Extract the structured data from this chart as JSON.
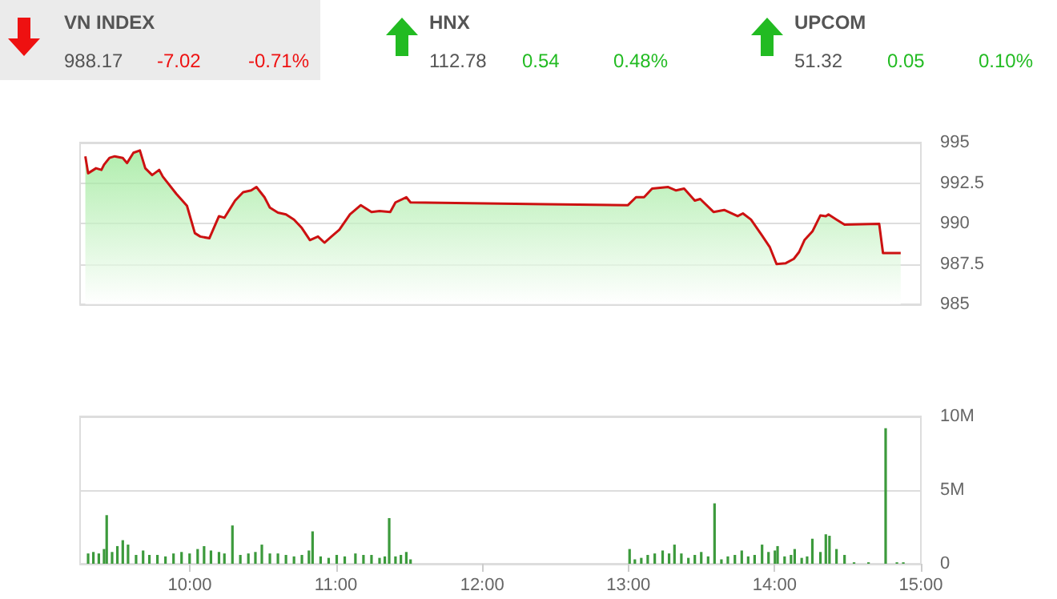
{
  "chart_data": [
    {
      "type": "other",
      "annotations": [
        "VN INDEX",
        "988.17",
        "-7.02",
        "-0.71%",
        "HNX",
        "112.78",
        "0.54",
        "0.48%",
        "UPCOM",
        "51.32",
        "0.05",
        "0.10%"
      ]
    },
    {
      "type": "area",
      "x": [
        9.286,
        9.305,
        9.359,
        9.396,
        9.414,
        9.451,
        9.487,
        9.542,
        9.571,
        9.615,
        9.659,
        9.696,
        9.743,
        9.791,
        9.816,
        9.908,
        9.981,
        10.035,
        10.072,
        10.134,
        10.2,
        10.237,
        10.31,
        10.365,
        10.42,
        10.456,
        10.511,
        10.548,
        10.603,
        10.658,
        10.713,
        10.767,
        10.822,
        10.877,
        10.921,
        10.969,
        11.023,
        11.096,
        11.17,
        11.243,
        11.298,
        11.371,
        11.407,
        11.481,
        11.51,
        12.431,
        12.997,
        13.052,
        13.107,
        13.162,
        13.272,
        13.326,
        13.381,
        13.454,
        13.491,
        13.582,
        13.655,
        13.747,
        13.783,
        13.838,
        13.911,
        13.966,
        14.013,
        14.076,
        14.131,
        14.167,
        14.204,
        14.258,
        14.313,
        14.35,
        14.368,
        14.423,
        14.478,
        14.715,
        14.741,
        14.862
      ],
      "series": [
        {
          "color": "#cc1111",
          "values": [
            994.15,
            993.1,
            993.41,
            993.31,
            993.63,
            994.05,
            994.15,
            994.05,
            993.73,
            994.37,
            994.51,
            993.41,
            992.99,
            993.31,
            992.89,
            991.83,
            991.09,
            989.4,
            989.19,
            989.08,
            990.45,
            990.35,
            991.41,
            991.93,
            992.04,
            992.25,
            991.62,
            990.98,
            990.67,
            990.56,
            990.24,
            989.71,
            988.97,
            989.19,
            988.81,
            989.19,
            989.61,
            990.56,
            991.13,
            990.71,
            990.77,
            990.71,
            991.3,
            991.62,
            991.3,
            991.19,
            991.13,
            991.62,
            991.62,
            992.15,
            992.25,
            992.04,
            992.15,
            991.41,
            991.51,
            990.71,
            990.83,
            990.45,
            990.62,
            990.24,
            989.29,
            988.55,
            987.49,
            987.54,
            987.81,
            988.23,
            988.97,
            989.5,
            990.5,
            990.45,
            990.56,
            990.24,
            989.93,
            989.97,
            988.17,
            988.17
          ]
        }
      ],
      "xlim": [
        9.25,
        15
      ],
      "ylim": [
        985,
        995
      ],
      "yticks": [
        985,
        987.5,
        990,
        992.5,
        995
      ],
      "grid": "y",
      "tick_labels": "y"
    },
    {
      "type": "bar",
      "x": [
        9.305,
        9.341,
        9.378,
        9.414,
        9.432,
        9.469,
        9.505,
        9.542,
        9.578,
        9.633,
        9.681,
        9.724,
        9.779,
        9.834,
        9.889,
        9.944,
        9.999,
        10.054,
        10.098,
        10.145,
        10.2,
        10.237,
        10.292,
        10.346,
        10.401,
        10.449,
        10.493,
        10.548,
        10.603,
        10.658,
        10.713,
        10.767,
        10.815,
        10.84,
        10.895,
        10.95,
        11.005,
        11.06,
        11.133,
        11.188,
        11.243,
        11.298,
        11.334,
        11.364,
        11.407,
        11.444,
        11.481,
        11.51,
        13.008,
        13.044,
        13.088,
        13.132,
        13.18,
        13.234,
        13.278,
        13.315,
        13.362,
        13.41,
        13.454,
        13.498,
        13.545,
        13.589,
        13.636,
        13.68,
        13.728,
        13.775,
        13.819,
        13.863,
        13.914,
        13.958,
        14.002,
        14.02,
        14.068,
        14.112,
        14.137,
        14.185,
        14.222,
        14.258,
        14.313,
        14.35,
        14.375,
        14.423,
        14.478,
        14.543,
        14.642,
        14.759,
        14.836,
        14.88
      ],
      "series": [
        {
          "color": "#3c9a3c",
          "values": [
            0.7,
            0.8,
            0.7,
            1.0,
            3.3,
            0.8,
            1.2,
            1.6,
            1.3,
            0.6,
            0.9,
            0.6,
            0.6,
            0.5,
            0.7,
            0.8,
            0.7,
            1.0,
            1.2,
            0.9,
            0.8,
            0.7,
            2.6,
            0.6,
            0.7,
            0.8,
            1.3,
            0.7,
            0.7,
            0.6,
            0.5,
            0.6,
            0.9,
            2.2,
            0.5,
            0.4,
            0.6,
            0.5,
            0.7,
            0.6,
            0.6,
            0.4,
            0.5,
            3.1,
            0.5,
            0.6,
            0.8,
            0.3,
            1.0,
            0.3,
            0.4,
            0.6,
            0.7,
            0.9,
            0.7,
            1.3,
            0.7,
            0.4,
            0.6,
            0.8,
            0.5,
            4.1,
            0.3,
            0.5,
            0.6,
            0.9,
            0.5,
            0.6,
            1.3,
            0.8,
            0.9,
            1.2,
            0.5,
            0.6,
            1.0,
            0.4,
            0.5,
            1.7,
            0.8,
            2.0,
            1.9,
            1.0,
            0.6,
            0.1,
            0.1,
            9.2,
            0.1,
            0.1
          ]
        }
      ],
      "xlim": [
        9.25,
        15
      ],
      "xticks": [
        {
          "value": 10,
          "label": "10:00"
        },
        {
          "value": 11,
          "label": "11:00"
        },
        {
          "value": 12,
          "label": "12:00"
        },
        {
          "value": 13,
          "label": "13:00"
        },
        {
          "value": 14,
          "label": "14:00"
        },
        {
          "value": 15,
          "label": "15:00"
        }
      ],
      "ylim": [
        0,
        10
      ],
      "yticks": [
        0,
        {
          "value": 5,
          "label": "5M"
        },
        {
          "value": 10,
          "label": "10M"
        }
      ],
      "grid": "y"
    }
  ]
}
